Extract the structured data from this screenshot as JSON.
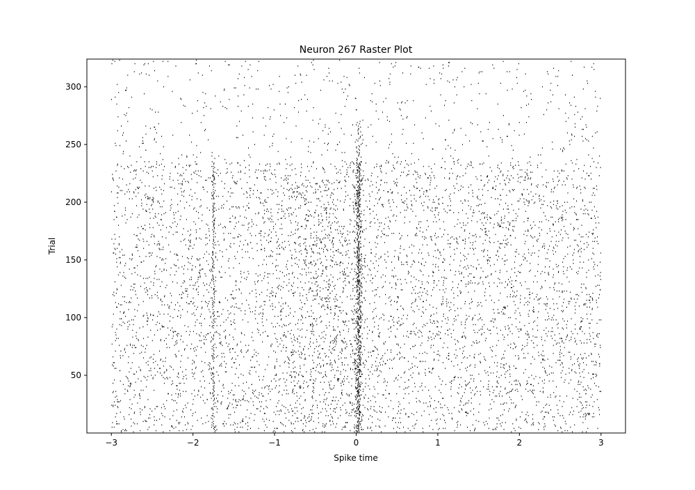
{
  "chart_data": {
    "type": "scatter",
    "subtype": "raster",
    "title": "Neuron 267 Raster Plot",
    "xlabel": "Spike time",
    "ylabel": "Trial",
    "xlim": [
      -3.3,
      3.3
    ],
    "ylim": [
      0,
      324
    ],
    "xticks": [
      -3,
      -2,
      -1,
      0,
      1,
      2,
      3
    ],
    "yticks": [
      50,
      100,
      150,
      200,
      250,
      300
    ],
    "xtick_labels": [
      "−3",
      "−2",
      "−1",
      "0",
      "1",
      "2",
      "3"
    ],
    "ytick_labels": [
      "50",
      "100",
      "150",
      "200",
      "250",
      "300"
    ],
    "trial_range": [
      1,
      323
    ],
    "spike_time_range": [
      -3,
      3
    ],
    "marker": "|",
    "marker_color": "#000000",
    "grid": false,
    "legend": "none",
    "features": {
      "stimulus_aligned_burst_time": 0.03,
      "secondary_vertical_band_time": -1.75,
      "dense_trial_range": [
        1,
        235
      ],
      "sparse_trial_range": [
        236,
        323
      ]
    }
  }
}
